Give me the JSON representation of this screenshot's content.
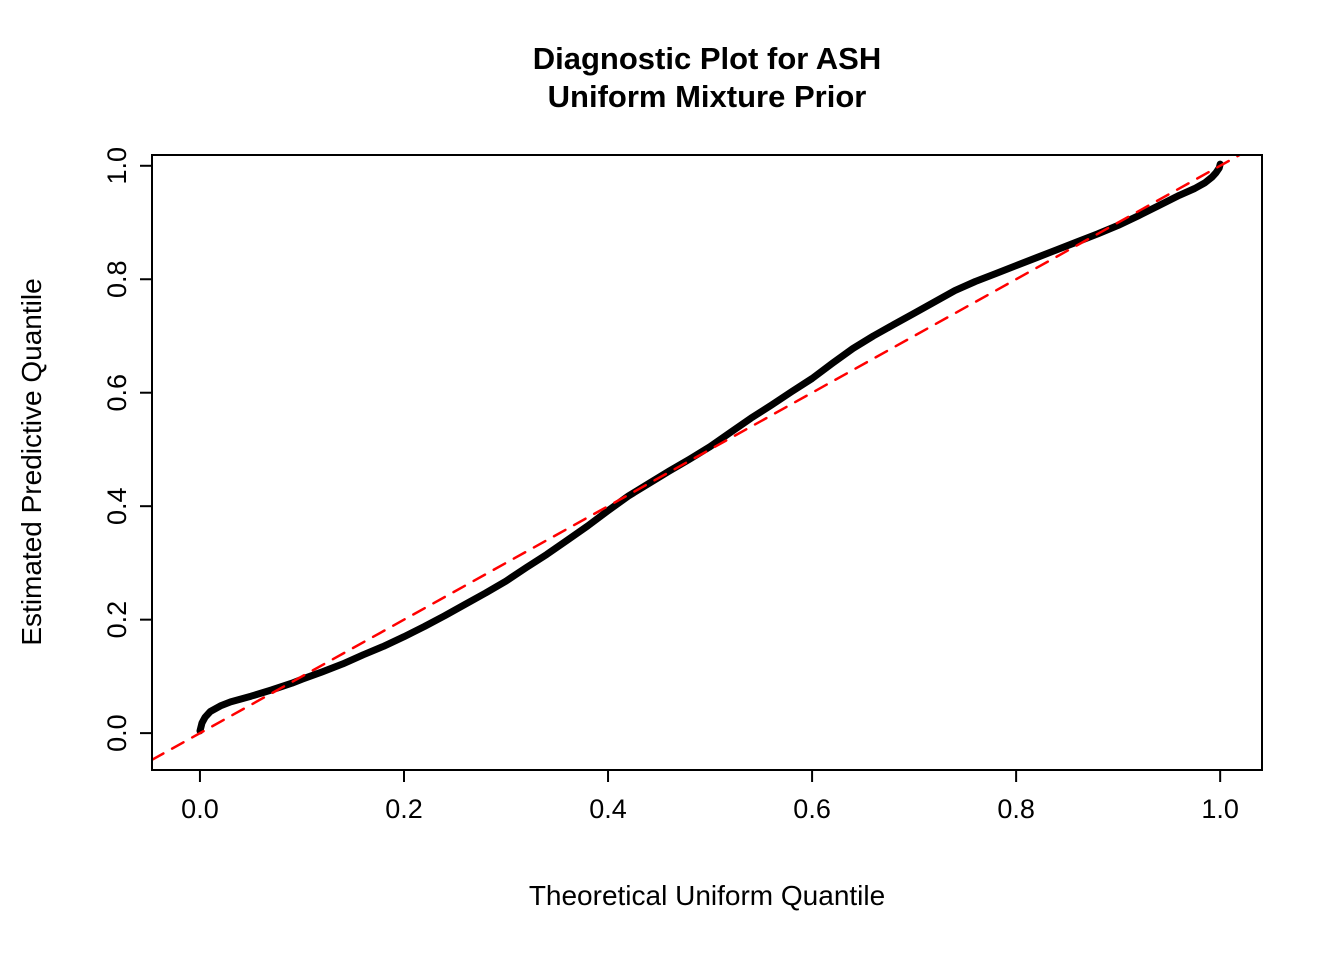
{
  "page": {
    "background": "#ffffff"
  },
  "title": {
    "line1": "Diagnostic Plot for ASH",
    "line2": "Uniform Mixture Prior"
  },
  "chart_data": {
    "type": "line",
    "title": "Diagnostic Plot for ASH\nUniform Mixture Prior",
    "xlabel": "Theoretical Uniform Quantile",
    "ylabel": "Estimated Predictive Quantile",
    "xlim": [
      -0.047,
      1.041
    ],
    "ylim": [
      -0.065,
      1.019
    ],
    "grid": false,
    "legend": "none",
    "x_ticks": {
      "values": [
        0.0,
        0.2,
        0.4,
        0.6,
        0.8,
        1.0
      ],
      "labels": [
        "0.0",
        "0.2",
        "0.4",
        "0.6",
        "0.8",
        "1.0"
      ]
    },
    "y_ticks": {
      "values": [
        0.0,
        0.2,
        0.4,
        0.6,
        0.8,
        1.0
      ],
      "labels": [
        "0.0",
        "0.2",
        "0.4",
        "0.6",
        "0.8",
        "1.0"
      ]
    },
    "series": [
      {
        "name": "empirical-predictive-quantiles",
        "color": "#000000",
        "width": 7,
        "dash": "",
        "points": [
          [
            0.0,
            0.004
          ],
          [
            0.002,
            0.018
          ],
          [
            0.005,
            0.028
          ],
          [
            0.01,
            0.038
          ],
          [
            0.02,
            0.048
          ],
          [
            0.03,
            0.055
          ],
          [
            0.05,
            0.065
          ],
          [
            0.07,
            0.076
          ],
          [
            0.09,
            0.088
          ],
          [
            0.1,
            0.095
          ],
          [
            0.12,
            0.108
          ],
          [
            0.14,
            0.122
          ],
          [
            0.16,
            0.138
          ],
          [
            0.18,
            0.153
          ],
          [
            0.2,
            0.17
          ],
          [
            0.22,
            0.188
          ],
          [
            0.24,
            0.207
          ],
          [
            0.26,
            0.227
          ],
          [
            0.28,
            0.247
          ],
          [
            0.3,
            0.268
          ],
          [
            0.32,
            0.292
          ],
          [
            0.34,
            0.315
          ],
          [
            0.36,
            0.34
          ],
          [
            0.38,
            0.365
          ],
          [
            0.4,
            0.392
          ],
          [
            0.42,
            0.418
          ],
          [
            0.44,
            0.44
          ],
          [
            0.46,
            0.462
          ],
          [
            0.48,
            0.483
          ],
          [
            0.5,
            0.505
          ],
          [
            0.52,
            0.53
          ],
          [
            0.54,
            0.555
          ],
          [
            0.56,
            0.578
          ],
          [
            0.58,
            0.602
          ],
          [
            0.6,
            0.625
          ],
          [
            0.62,
            0.652
          ],
          [
            0.64,
            0.678
          ],
          [
            0.66,
            0.7
          ],
          [
            0.68,
            0.72
          ],
          [
            0.7,
            0.74
          ],
          [
            0.72,
            0.76
          ],
          [
            0.74,
            0.78
          ],
          [
            0.76,
            0.796
          ],
          [
            0.78,
            0.81
          ],
          [
            0.8,
            0.824
          ],
          [
            0.82,
            0.838
          ],
          [
            0.84,
            0.852
          ],
          [
            0.86,
            0.866
          ],
          [
            0.88,
            0.88
          ],
          [
            0.9,
            0.895
          ],
          [
            0.92,
            0.912
          ],
          [
            0.94,
            0.93
          ],
          [
            0.96,
            0.948
          ],
          [
            0.975,
            0.96
          ],
          [
            0.985,
            0.97
          ],
          [
            0.992,
            0.98
          ],
          [
            0.996,
            0.988
          ],
          [
            0.999,
            0.996
          ],
          [
            1.0,
            1.003
          ]
        ]
      },
      {
        "name": "reference-diagonal",
        "color": "#ff0000",
        "width": 2.5,
        "dash": "13 10",
        "points": [
          [
            -0.047,
            -0.047
          ],
          [
            1.041,
            1.041
          ]
        ]
      }
    ]
  }
}
